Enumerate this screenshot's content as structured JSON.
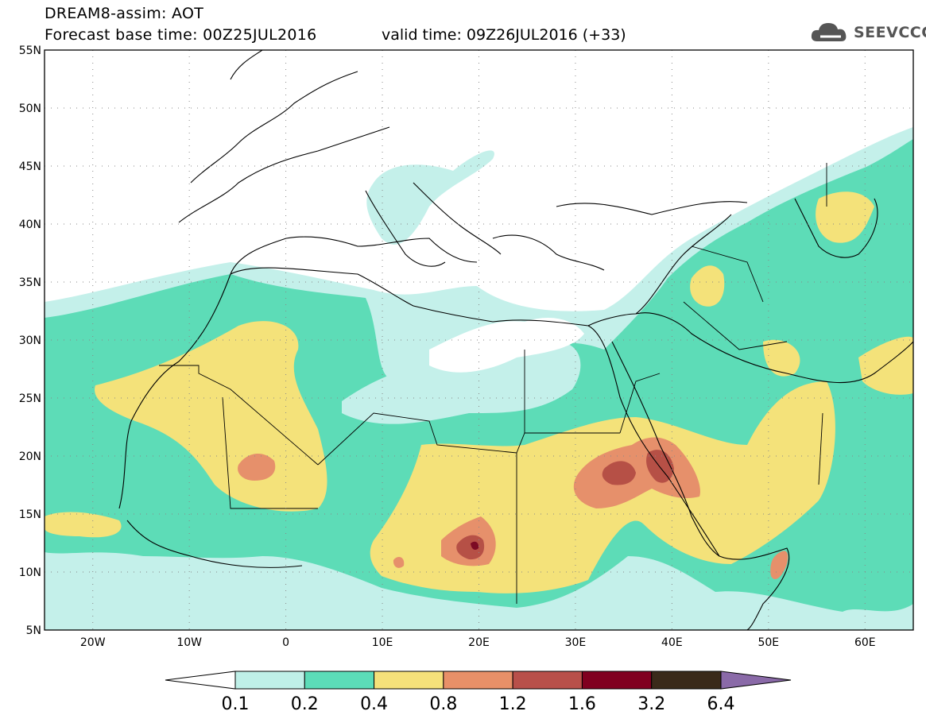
{
  "header": {
    "title": "DREAM8-assim: AOT",
    "forecast_base": "Forecast base time: 00Z25JUL2016",
    "valid_time": "valid time: 09Z26JUL2016 (+33)",
    "logo_text": "SEEVCCC",
    "logo_icon": "cloud-icon"
  },
  "map": {
    "lon_range": [
      -25,
      65
    ],
    "lat_range": [
      5,
      55
    ],
    "lon_ticks": [
      "20W",
      "10W",
      "0",
      "10E",
      "20E",
      "30E",
      "40E",
      "50E",
      "60E"
    ],
    "lat_ticks": [
      "55N",
      "50N",
      "45N",
      "40N",
      "35N",
      "30N",
      "25N",
      "20N",
      "15N",
      "10N",
      "5N"
    ],
    "gridlines": "dotted"
  },
  "colorbar": {
    "labels": [
      "0.1",
      "0.2",
      "0.4",
      "0.8",
      "1.2",
      "1.6",
      "3.2",
      "6.4"
    ],
    "colors": [
      "#ffffff",
      "#bff0e8",
      "#5cdcb8",
      "#f5e17a",
      "#e89068",
      "#b8504a",
      "#800020",
      "#3a2a1a",
      "#8a6aa8"
    ]
  },
  "colors": {
    "c1": "#c4f0ea",
    "c2": "#5ddcb7",
    "c3": "#f4e27a",
    "c4": "#e6906b",
    "c5": "#b65046",
    "c6": "#7c0a24"
  }
}
